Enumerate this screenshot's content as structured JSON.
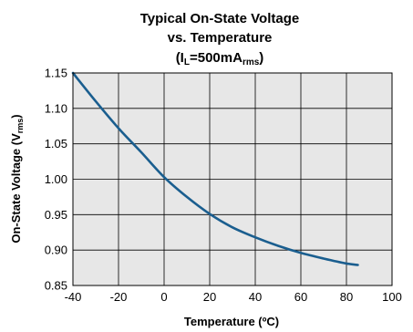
{
  "chart_data": {
    "type": "line",
    "title": {
      "line1": "Typical On-State Voltage",
      "line2": "vs. Temperature",
      "line3_pre": "(I",
      "line3_sub": "L",
      "line3_mid": "=500mA",
      "line3_sub2": "rms",
      "line3_post": ")"
    },
    "xlabel": "Temperature (ºC)",
    "ylabel": {
      "pre": "On-State Voltage (V",
      "sub": "rms",
      "post": ")"
    },
    "xlim": [
      -40,
      100
    ],
    "ylim": [
      0.85,
      1.15
    ],
    "x_ticks": [
      "-40",
      "-20",
      "0",
      "20",
      "40",
      "60",
      "80",
      "100"
    ],
    "y_ticks": [
      "0.85",
      "0.90",
      "0.95",
      "1.00",
      "1.05",
      "1.10",
      "1.15"
    ],
    "grid": true,
    "plot_background": "#e7e7e7",
    "grid_color": "#000000",
    "series": [
      {
        "color": "#1a5e8f",
        "x": [
          -40,
          -30,
          -20,
          -10,
          0,
          10,
          20,
          30,
          40,
          50,
          60,
          70,
          80,
          85
        ],
        "y": [
          1.15,
          1.11,
          1.072,
          1.038,
          1.003,
          0.975,
          0.951,
          0.932,
          0.918,
          0.906,
          0.896,
          0.888,
          0.881,
          0.879
        ]
      }
    ]
  }
}
